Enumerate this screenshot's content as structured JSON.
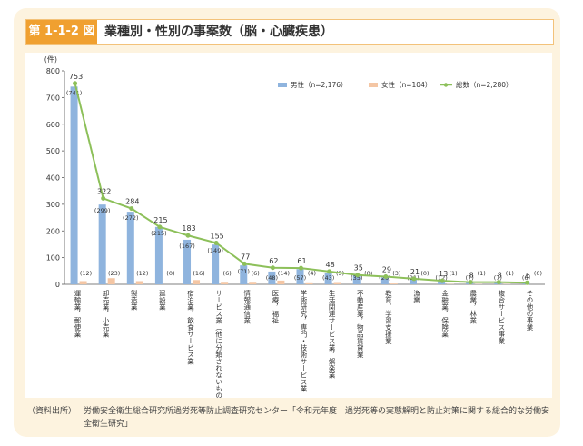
{
  "figure": {
    "label": "第 1-1-2 図",
    "title": "業種別・性別の事案数（脳・心臓疾患）"
  },
  "source": {
    "label": "（資料出所）",
    "text": "労働安全衛生総合研究所過労死等防止調査研究センター「令和元年度　過労死等の実態解明と防止対策に関する総合的な労働安全衛生研究」"
  },
  "colors": {
    "male": "#8fb4de",
    "female": "#f4c6a4",
    "total": "#8dc05a",
    "accent": "#f0a030",
    "frame": "#fdf3df"
  },
  "chart_data": {
    "type": "bar",
    "ylabel": "(件)",
    "ylim": [
      0,
      800
    ],
    "yticks": [
      0,
      100,
      200,
      300,
      400,
      500,
      600,
      700,
      800
    ],
    "categories": [
      "運輸業，郵便業",
      "卸売業，小売業",
      "製造業",
      "建設業",
      "宿泊業，飲食サービス業",
      "サービス業（他に分類されないもの）",
      "情報通信業",
      "医療，福祉",
      "学術研究，専門・技術サービス業",
      "生活関連サービス業，娯楽業",
      "不動産業，物品賃貸業",
      "教育，学習支援業",
      "漁業",
      "金融業，保険業",
      "農業，林業",
      "複合サービス事業",
      "その他の事業"
    ],
    "series": [
      {
        "name": "男性（n=2,176）",
        "type": "bar",
        "values": [
          741,
          299,
          272,
          215,
          167,
          149,
          71,
          48,
          57,
          43,
          35,
          26,
          21,
          12,
          7,
          7,
          6
        ]
      },
      {
        "name": "女性（n=104）",
        "type": "bar",
        "values": [
          12,
          23,
          12,
          0,
          16,
          6,
          6,
          14,
          4,
          5,
          0,
          3,
          0,
          1,
          1,
          1,
          0
        ]
      },
      {
        "name": "総数（n=2,280）",
        "type": "line",
        "values": [
          753,
          322,
          284,
          215,
          183,
          155,
          77,
          62,
          61,
          48,
          35,
          29,
          21,
          13,
          8,
          8,
          6
        ]
      }
    ],
    "legend_position": "top-right",
    "grid": false
  }
}
